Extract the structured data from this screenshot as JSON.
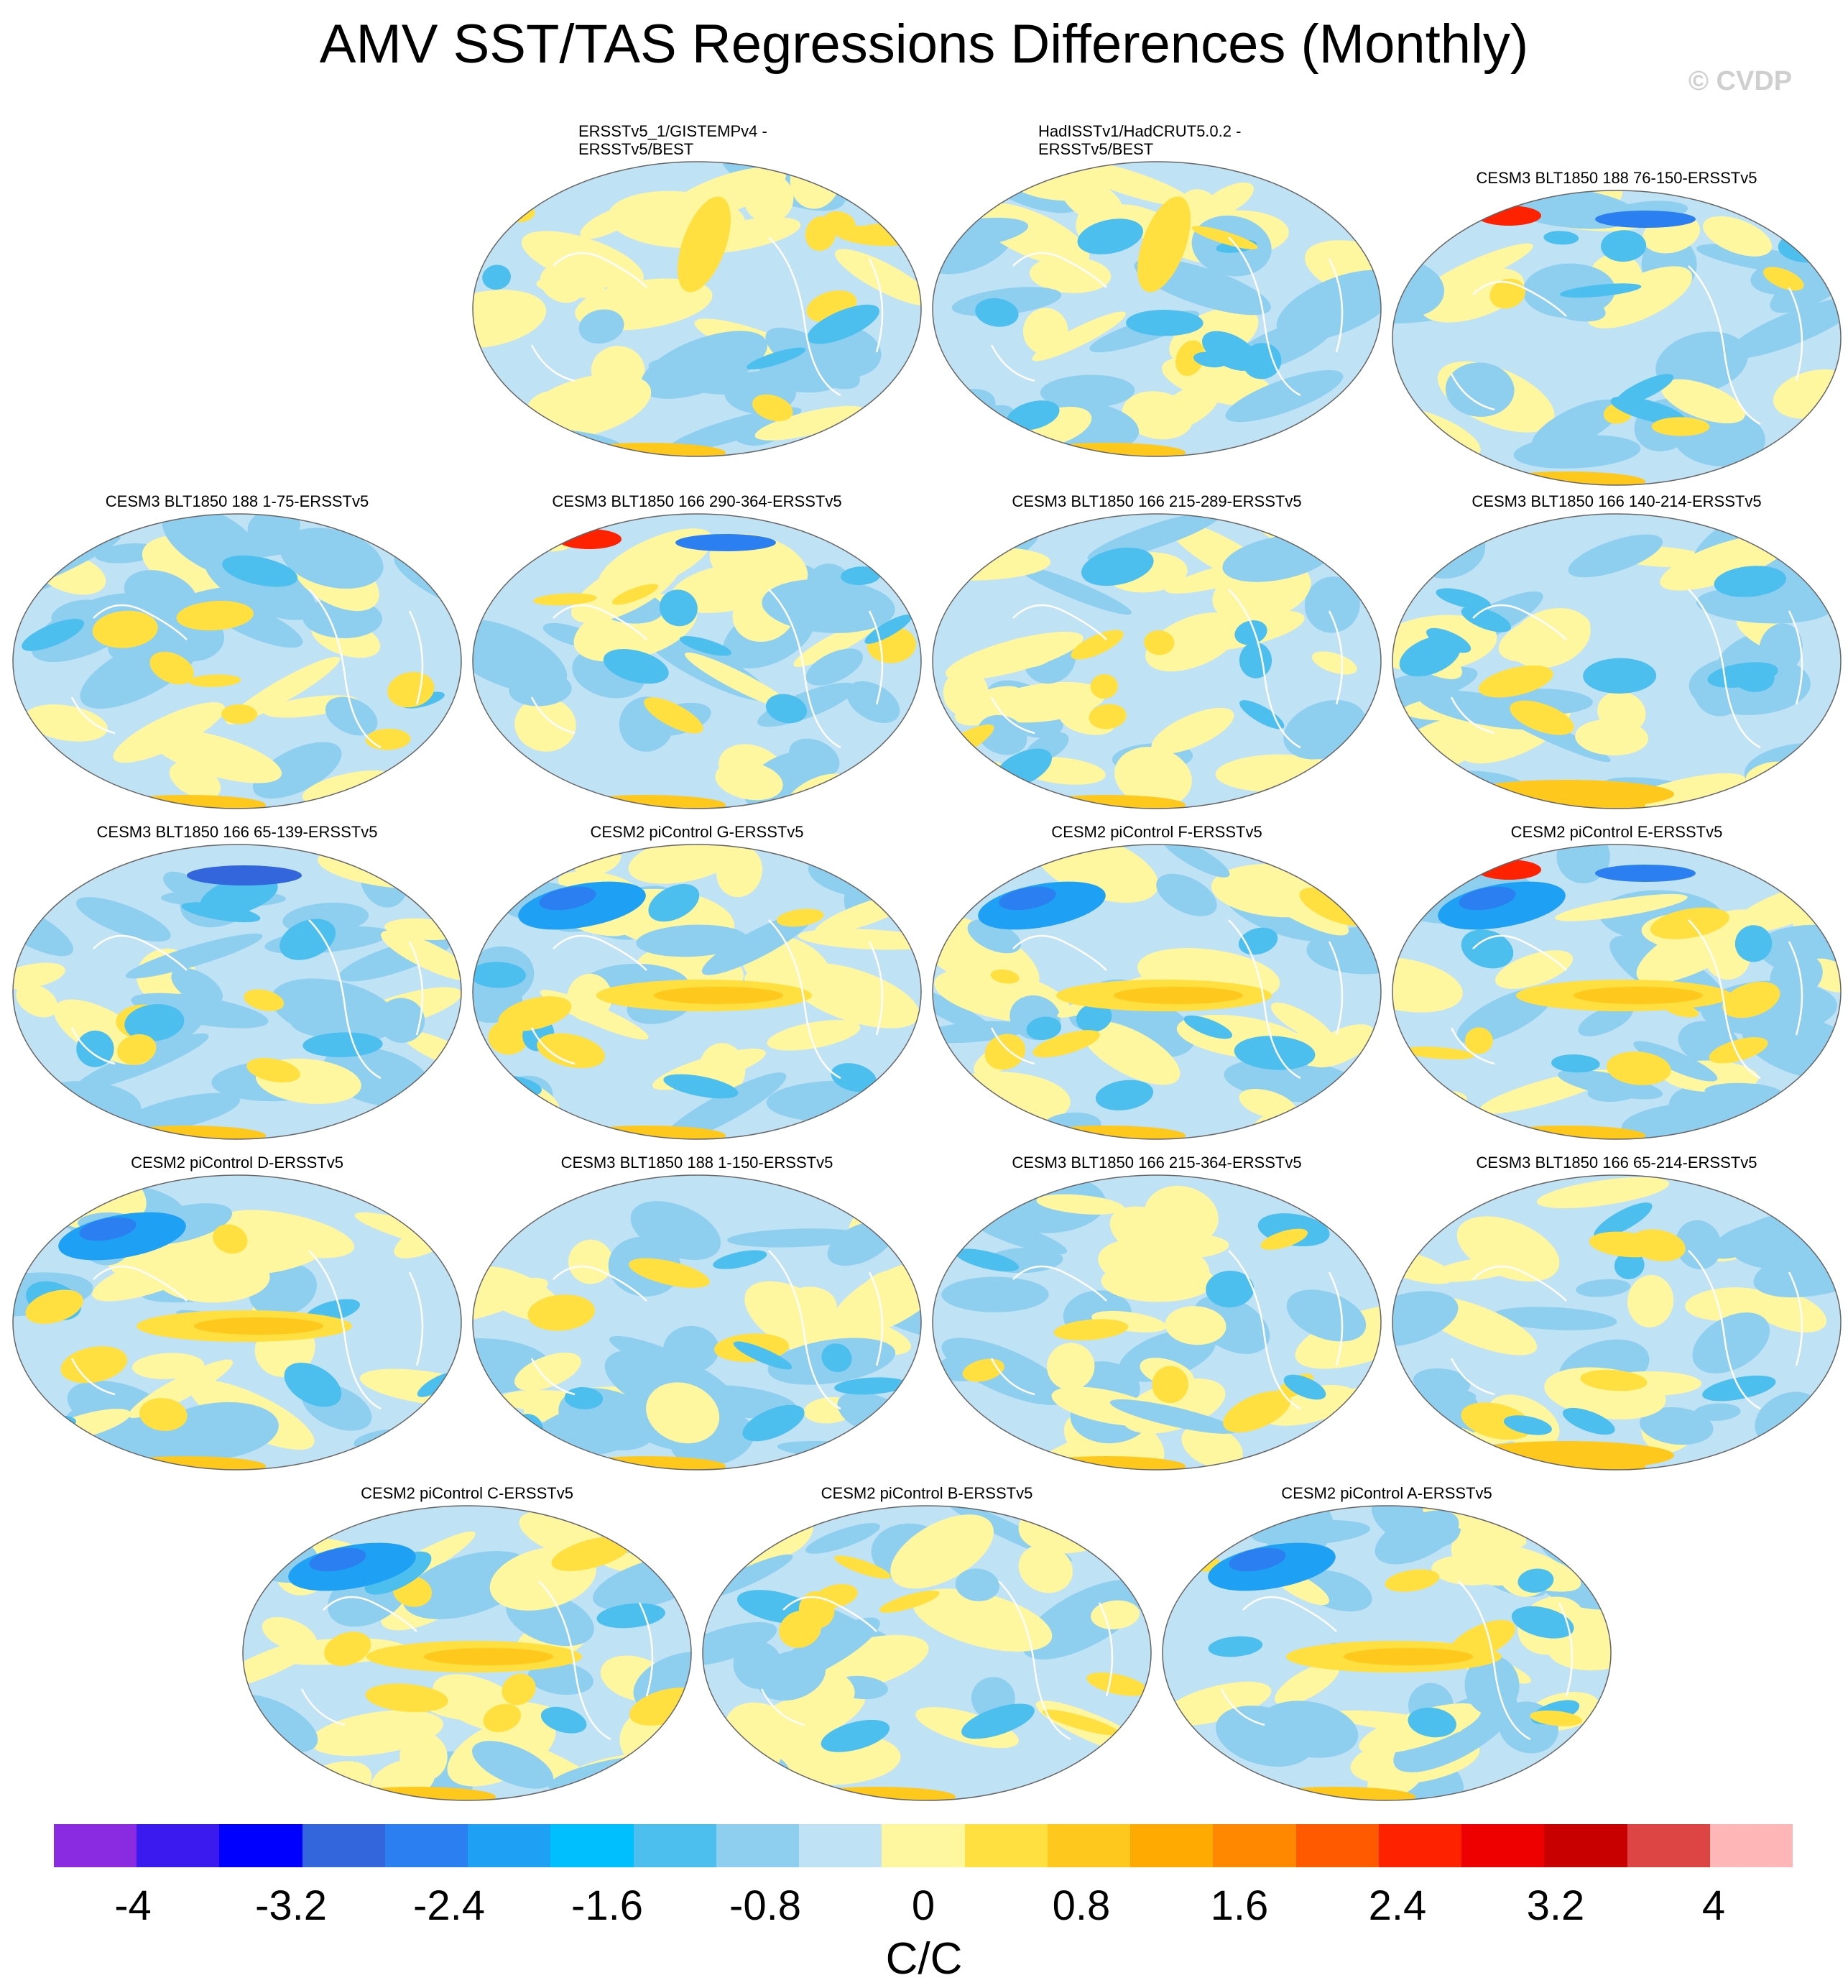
{
  "title": "AMV SST/TAS Regressions Differences (Monthly)",
  "watermark": "© CVDP",
  "chart_data": {
    "type": "heatmap",
    "projection": "Robinson global maps, centered on the Pacific",
    "panels": [
      {
        "title_lines": [
          "ERSSTv5_1/GISTEMPv4 -",
          "ERSSTv5/BEST"
        ],
        "label": "ERSSTv5_1/GISTEMPv4 - ERSSTv5/BEST",
        "pattern": "obs-diff-1"
      },
      {
        "title_lines": [
          "HadISSTv1/HadCRUT5.0.2 -",
          "ERSSTv5/BEST"
        ],
        "label": "HadISSTv1/HadCRUT5.0.2 - ERSSTv5/BEST",
        "pattern": "obs-diff-2"
      },
      {
        "title_lines": [
          "CESM3 BLT1850 188 76-150-ERSSTv5"
        ],
        "label": "CESM3 BLT1850 188 76-150-ERSSTv5",
        "pattern": "model-pos-europe"
      },
      {
        "title_lines": [
          "CESM3 BLT1850 188 1-75-ERSSTv5"
        ],
        "label": "CESM3 BLT1850 188 1-75-ERSSTv5",
        "pattern": "model-weak"
      },
      {
        "title_lines": [
          "CESM3 BLT1850 166 290-364-ERSSTv5"
        ],
        "label": "CESM3 BLT1850 166 290-364-ERSSTv5",
        "pattern": "model-pos-europe"
      },
      {
        "title_lines": [
          "CESM3 BLT1850 166 215-289-ERSSTv5"
        ],
        "label": "CESM3 BLT1850 166 215-289-ERSSTv5",
        "pattern": "model-weak"
      },
      {
        "title_lines": [
          "CESM3 BLT1850 166 140-214-ERSSTv5"
        ],
        "label": "CESM3 BLT1850 166 140-214-ERSSTv5",
        "pattern": "model-weak-south"
      },
      {
        "title_lines": [
          "CESM3 BLT1850 166 65-139-ERSSTv5"
        ],
        "label": "CESM3 BLT1850 166 65-139-ERSSTv5",
        "pattern": "model-neg-arctic"
      },
      {
        "title_lines": [
          "CESM2 piControl G-ERSSTv5"
        ],
        "label": "CESM2 piControl G-ERSSTv5",
        "pattern": "model-enso"
      },
      {
        "title_lines": [
          "CESM2 piControl F-ERSSTv5"
        ],
        "label": "CESM2 piControl F-ERSSTv5",
        "pattern": "model-enso"
      },
      {
        "title_lines": [
          "CESM2 piControl E-ERSSTv5"
        ],
        "label": "CESM2 piControl E-ERSSTv5",
        "pattern": "model-enso-europe"
      },
      {
        "title_lines": [
          "CESM2 piControl D-ERSSTv5"
        ],
        "label": "CESM2 piControl D-ERSSTv5",
        "pattern": "model-enso"
      },
      {
        "title_lines": [
          "CESM3 BLT1850 188 1-150-ERSSTv5"
        ],
        "label": "CESM3 BLT1850 188 1-150-ERSSTv5",
        "pattern": "model-weak"
      },
      {
        "title_lines": [
          "CESM3 BLT1850 166 215-364-ERSSTv5"
        ],
        "label": "CESM3 BLT1850 166 215-364-ERSSTv5",
        "pattern": "model-weak"
      },
      {
        "title_lines": [
          "CESM3 BLT1850 166 65-214-ERSSTv5"
        ],
        "label": "CESM3 BLT1850 166 65-214-ERSSTv5",
        "pattern": "model-weak-south"
      },
      {
        "title_lines": [
          "CESM2 piControl C-ERSSTv5"
        ],
        "label": "CESM2 piControl C-ERSSTv5",
        "pattern": "model-enso"
      },
      {
        "title_lines": [
          "CESM2 piControl B-ERSSTv5"
        ],
        "label": "CESM2 piControl B-ERSSTv5",
        "pattern": "model-weak"
      },
      {
        "title_lines": [
          "CESM2 piControl A-ERSSTv5"
        ],
        "label": "CESM2 piControl A-ERSSTv5",
        "pattern": "model-enso"
      }
    ],
    "colorbar": {
      "units": "C/C",
      "range": [
        -4.4,
        4.4
      ],
      "interval": 0.4,
      "tick_labels": [
        "-4",
        "-3.2",
        "-2.4",
        "-1.6",
        "-0.8",
        "0",
        "0.8",
        "1.6",
        "2.4",
        "3.2",
        "4"
      ],
      "colors": [
        "#8a2be2",
        "#3a1aef",
        "#0000ff",
        "#3366dd",
        "#2b7ff0",
        "#1ea0f5",
        "#00bfff",
        "#4cbfef",
        "#8ecff0",
        "#bfe2f4",
        "#fff7a0",
        "#ffe040",
        "#ffc81c",
        "#ffaa00",
        "#ff8800",
        "#ff5a00",
        "#ff2200",
        "#ee0000",
        "#c80000",
        "#dd4444",
        "#ffb6b6"
      ]
    }
  }
}
